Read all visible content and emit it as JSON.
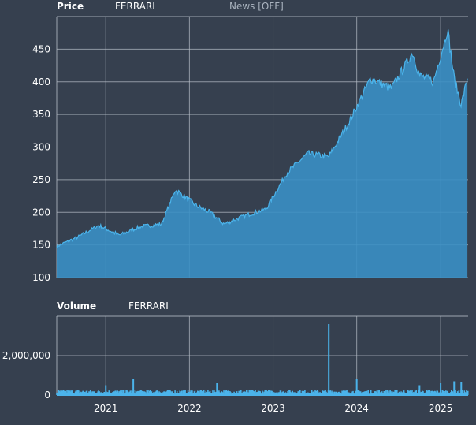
{
  "header": {
    "price_label": "Price",
    "price_series": "FERRARI",
    "news_toggle": "News [OFF]",
    "volume_label": "Volume",
    "volume_series": "FERRARI"
  },
  "colors": {
    "background": "#36404f",
    "area_fill": "#3a8fc4",
    "line": "#4bb3ea",
    "grid": "#b8bfc9"
  },
  "chart_data": [
    {
      "type": "area",
      "panel": "price",
      "series": [
        {
          "name": "FERRARI"
        }
      ],
      "x": [
        "2020-06",
        "2020-09",
        "2020-12",
        "2021-03",
        "2021-06",
        "2021-09",
        "2021-11",
        "2022-02",
        "2022-04",
        "2022-06",
        "2022-09",
        "2022-12",
        "2023-03",
        "2023-06",
        "2023-09",
        "2023-12",
        "2024-03",
        "2024-06",
        "2024-09",
        "2024-10",
        "2024-12",
        "2025-02",
        "2025-03",
        "2025-04",
        "2025-05"
      ],
      "values": [
        148,
        162,
        180,
        165,
        178,
        182,
        235,
        210,
        200,
        182,
        195,
        205,
        260,
        290,
        285,
        340,
        405,
        390,
        445,
        410,
        400,
        480,
        405,
        365,
        410
      ],
      "ylim": [
        100,
        500
      ],
      "yticks": [
        "100",
        "150",
        "200",
        "250",
        "300",
        "350",
        "400",
        "450"
      ],
      "grid": true
    },
    {
      "type": "bar",
      "panel": "volume",
      "series": [
        {
          "name": "FERRARI"
        }
      ],
      "x": [
        "2021-01",
        "2021-05",
        "2022-05",
        "2023-09",
        "2024-01",
        "2024-10",
        "2025-01",
        "2025-03",
        "2025-04"
      ],
      "values": [
        500000,
        800000,
        600000,
        3600000,
        800000,
        500000,
        600000,
        700000,
        650000
      ],
      "baseline": 150000,
      "ylim": [
        0,
        4000000
      ],
      "yticks": [
        "0",
        "2,000,000"
      ],
      "grid": true
    }
  ],
  "xaxis": {
    "ticks": [
      "2021",
      "2022",
      "2023",
      "2024",
      "2025"
    ]
  }
}
